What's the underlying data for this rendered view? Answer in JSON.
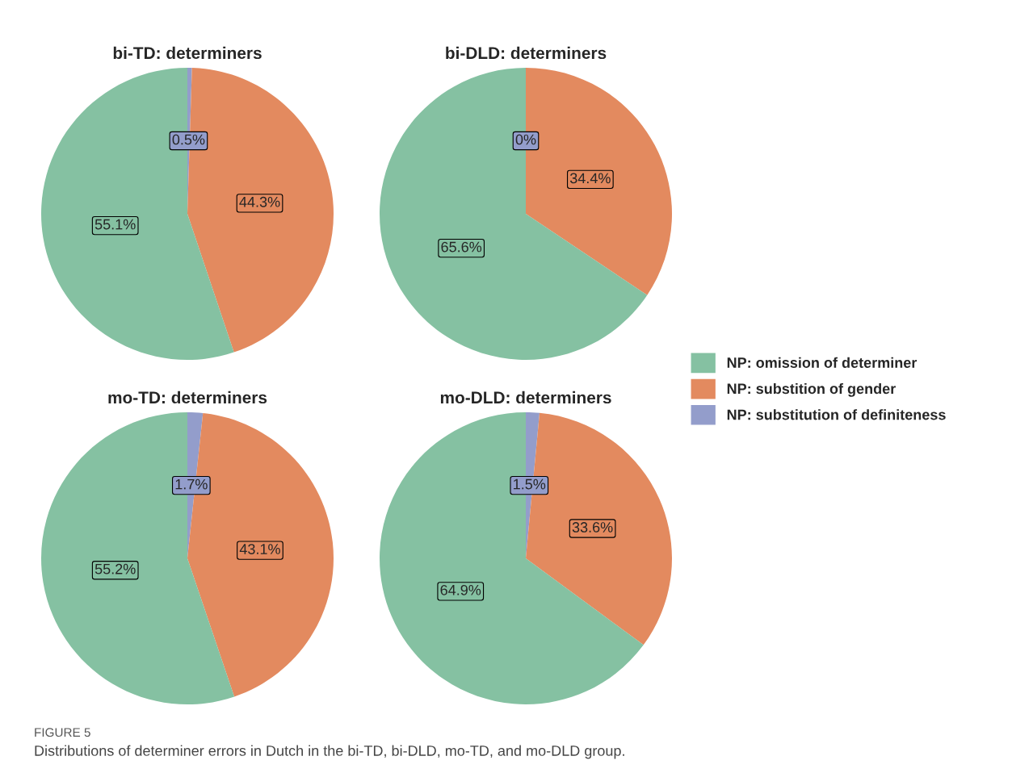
{
  "chart_data": [
    {
      "type": "pie",
      "title": "bi-TD: determiners",
      "categories": [
        "NP: omission of determiner",
        "NP: substition of gender",
        "NP: substitution of definiteness"
      ],
      "values": [
        55.1,
        44.3,
        0.5
      ],
      "value_labels": [
        "55.1%",
        "44.3%",
        "0.5%"
      ],
      "colors": [
        "#85c1a2",
        "#e38a5f",
        "#939dcb"
      ],
      "legend": "right"
    },
    {
      "type": "pie",
      "title": "bi-DLD: determiners",
      "categories": [
        null,
        null,
        null
      ],
      "values": [
        65.6,
        34.4,
        0
      ],
      "value_labels": [
        "65.6%",
        "34.4%",
        "0%"
      ],
      "colors": [
        "#85c1a2",
        "#e38a5f",
        "#939dcb"
      ]
    },
    {
      "type": "pie",
      "title": "mo-TD: determiners",
      "categories": [
        null,
        null,
        null
      ],
      "values": [
        55.2,
        43.1,
        1.7
      ],
      "value_labels": [
        "55.2%",
        "43.1%",
        "1.7%"
      ],
      "colors": [
        "#85c1a2",
        "#e38a5f",
        "#939dcb"
      ]
    },
    {
      "type": "pie",
      "title": "mo-DLD: determiners",
      "categories": [
        null,
        null,
        null
      ],
      "values": [
        64.9,
        33.6,
        1.5
      ],
      "value_labels": [
        "64.9%",
        "33.6%",
        "1.5%"
      ],
      "colors": [
        "#85c1a2",
        "#e38a5f",
        "#939dcb"
      ],
      "annotations": [
        "FIGURE 5",
        "Distributions of determiner errors in Dutch in the bi-TD, bi-DLD, mo-TD, and mo-DLD group."
      ]
    }
  ]
}
